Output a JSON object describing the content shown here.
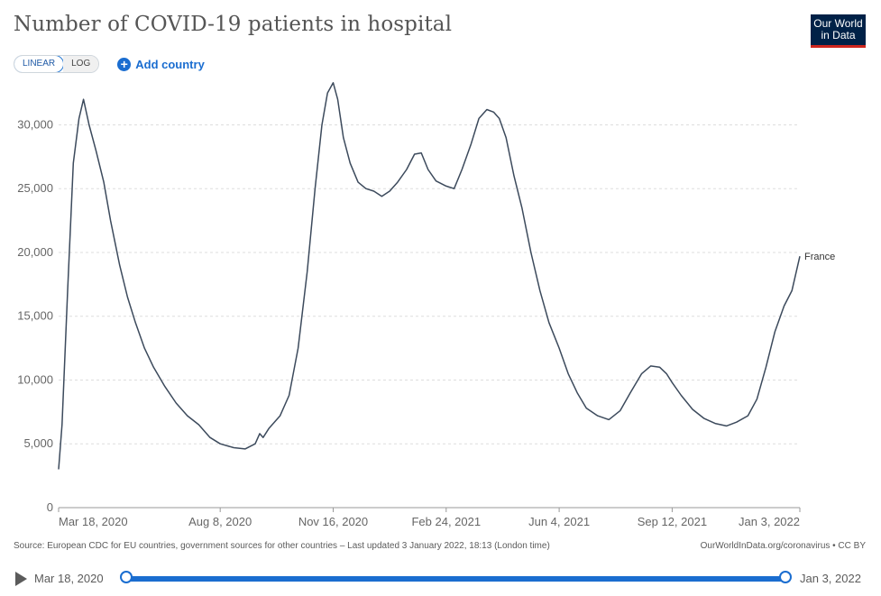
{
  "title": "Number of COVID-19 patients in hospital",
  "logo": {
    "line1": "Our World",
    "line2": "in Data",
    "colors": {
      "bg": "#002147",
      "accent": "#ce261e"
    }
  },
  "controls": {
    "linear_label": "LINEAR",
    "log_label": "LOG",
    "selected": "LINEAR",
    "add_country_label": "Add country",
    "add_icon": "plus-circle-icon"
  },
  "footer": {
    "source": "Source: European CDC for EU countries, government sources for other countries – Last updated 3 January 2022, 18:13 (London time)",
    "credit": "OurWorldInData.org/coronavirus • CC BY"
  },
  "timeline": {
    "start_label": "Mar 18, 2020",
    "end_label": "Jan 3, 2022",
    "play_icon": "play-icon",
    "start_value": 0,
    "end_value": 1
  },
  "chart_data": {
    "type": "line",
    "title": "Number of COVID-19 patients in hospital",
    "xlabel": "",
    "ylabel": "",
    "ylim": [
      0,
      33000
    ],
    "xlim": [
      "2020-03-18",
      "2022-01-03"
    ],
    "yticks": [
      0,
      5000,
      10000,
      15000,
      20000,
      25000,
      30000
    ],
    "ytick_labels": [
      "0",
      "5,000",
      "10,000",
      "15,000",
      "20,000",
      "25,000",
      "30,000"
    ],
    "xticks": [
      "2020-03-18",
      "2020-08-08",
      "2020-11-16",
      "2021-02-24",
      "2021-06-04",
      "2021-09-12",
      "2022-01-03"
    ],
    "xtick_labels": [
      "Mar 18, 2020",
      "Aug 8, 2020",
      "Nov 16, 2020",
      "Feb 24, 2021",
      "Jun 4, 2021",
      "Sep 12, 2021",
      "Jan 3, 2022"
    ],
    "grid": true,
    "colors": {
      "line": "#3c4a5c",
      "grid": "#dddddd"
    },
    "series": [
      {
        "name": "France",
        "points": [
          [
            "2020-03-18",
            3000
          ],
          [
            "2020-03-21",
            6500
          ],
          [
            "2020-03-26",
            17000
          ],
          [
            "2020-03-31",
            27000
          ],
          [
            "2020-04-05",
            30500
          ],
          [
            "2020-04-09",
            32000
          ],
          [
            "2020-04-14",
            30000
          ],
          [
            "2020-04-20",
            28000
          ],
          [
            "2020-04-27",
            25500
          ],
          [
            "2020-05-03",
            22500
          ],
          [
            "2020-05-11",
            19000
          ],
          [
            "2020-05-18",
            16500
          ],
          [
            "2020-05-25",
            14500
          ],
          [
            "2020-06-02",
            12500
          ],
          [
            "2020-06-10",
            11000
          ],
          [
            "2020-06-20",
            9500
          ],
          [
            "2020-06-30",
            8200
          ],
          [
            "2020-07-10",
            7200
          ],
          [
            "2020-07-20",
            6500
          ],
          [
            "2020-07-30",
            5500
          ],
          [
            "2020-08-08",
            5000
          ],
          [
            "2020-08-20",
            4700
          ],
          [
            "2020-08-30",
            4600
          ],
          [
            "2020-09-08",
            5000
          ],
          [
            "2020-09-12",
            5800
          ],
          [
            "2020-09-15",
            5500
          ],
          [
            "2020-09-20",
            6200
          ],
          [
            "2020-09-30",
            7200
          ],
          [
            "2020-10-08",
            8800
          ],
          [
            "2020-10-16",
            12500
          ],
          [
            "2020-10-24",
            18500
          ],
          [
            "2020-10-31",
            25000
          ],
          [
            "2020-11-06",
            30000
          ],
          [
            "2020-11-11",
            32500
          ],
          [
            "2020-11-16",
            33300
          ],
          [
            "2020-11-20",
            32000
          ],
          [
            "2020-11-25",
            29000
          ],
          [
            "2020-12-01",
            27000
          ],
          [
            "2020-12-08",
            25500
          ],
          [
            "2020-12-15",
            25000
          ],
          [
            "2020-12-22",
            24800
          ],
          [
            "2020-12-29",
            24400
          ],
          [
            "2021-01-05",
            24800
          ],
          [
            "2021-01-12",
            25500
          ],
          [
            "2021-01-20",
            26500
          ],
          [
            "2021-01-27",
            27700
          ],
          [
            "2021-02-02",
            27800
          ],
          [
            "2021-02-08",
            26500
          ],
          [
            "2021-02-15",
            25600
          ],
          [
            "2021-02-24",
            25200
          ],
          [
            "2021-03-03",
            25000
          ],
          [
            "2021-03-10",
            26500
          ],
          [
            "2021-03-18",
            28500
          ],
          [
            "2021-03-25",
            30500
          ],
          [
            "2021-04-01",
            31200
          ],
          [
            "2021-04-07",
            31000
          ],
          [
            "2021-04-12",
            30500
          ],
          [
            "2021-04-18",
            29000
          ],
          [
            "2021-04-25",
            26000
          ],
          [
            "2021-05-02",
            23500
          ],
          [
            "2021-05-10",
            20000
          ],
          [
            "2021-05-18",
            17000
          ],
          [
            "2021-05-26",
            14500
          ],
          [
            "2021-06-04",
            12500
          ],
          [
            "2021-06-12",
            10500
          ],
          [
            "2021-06-20",
            9000
          ],
          [
            "2021-06-28",
            7800
          ],
          [
            "2021-07-08",
            7200
          ],
          [
            "2021-07-18",
            6900
          ],
          [
            "2021-07-28",
            7600
          ],
          [
            "2021-08-06",
            9000
          ],
          [
            "2021-08-16",
            10500
          ],
          [
            "2021-08-24",
            11100
          ],
          [
            "2021-09-01",
            11000
          ],
          [
            "2021-09-07",
            10500
          ],
          [
            "2021-09-12",
            9800
          ],
          [
            "2021-09-20",
            8800
          ],
          [
            "2021-09-30",
            7700
          ],
          [
            "2021-10-10",
            7000
          ],
          [
            "2021-10-20",
            6600
          ],
          [
            "2021-10-30",
            6400
          ],
          [
            "2021-11-08",
            6700
          ],
          [
            "2021-11-18",
            7200
          ],
          [
            "2021-11-26",
            8500
          ],
          [
            "2021-12-04",
            11000
          ],
          [
            "2021-12-12",
            13800
          ],
          [
            "2021-12-20",
            15800
          ],
          [
            "2021-12-27",
            17000
          ],
          [
            "2022-01-03",
            19700
          ]
        ]
      }
    ],
    "series_label": "France"
  }
}
